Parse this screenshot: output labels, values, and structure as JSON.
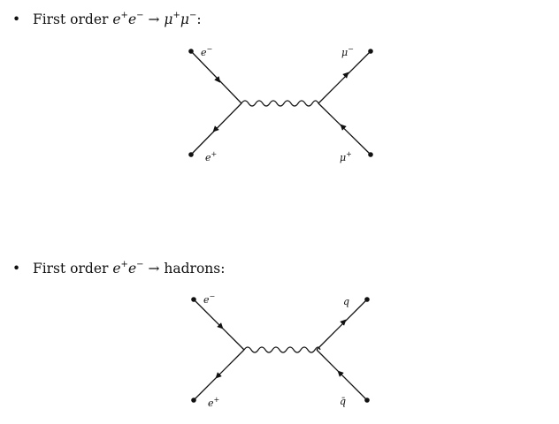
{
  "bullets": [
    {
      "prefix": "First order",
      "lhs1": "e",
      "lhs1_sup": "+",
      "lhs2": "e",
      "lhs2_sup": "−",
      "arrow": "→",
      "rhs1": "μ",
      "rhs1_sup": "+",
      "rhs2": "μ",
      "rhs2_sup": "−",
      "suffix": ":"
    },
    {
      "prefix": "First order",
      "lhs1": "e",
      "lhs1_sup": "+",
      "lhs2": "e",
      "lhs2_sup": "−",
      "arrow": "→",
      "rhs_text": "hadrons:"
    }
  ],
  "diagrams": [
    {
      "top_left": {
        "base": "e",
        "sup": "−"
      },
      "bottom_left": {
        "base": "e",
        "sup": "+"
      },
      "top_right": {
        "base": "μ",
        "sup": "−"
      },
      "bottom_right": {
        "base": "μ",
        "sup": "+"
      }
    },
    {
      "top_left": {
        "base": "e",
        "sup": "−"
      },
      "bottom_left": {
        "base": "e",
        "sup": "+"
      },
      "top_right": {
        "base": "q",
        "sup": ""
      },
      "bottom_right": {
        "base": "q̄",
        "sup": ""
      }
    }
  ]
}
